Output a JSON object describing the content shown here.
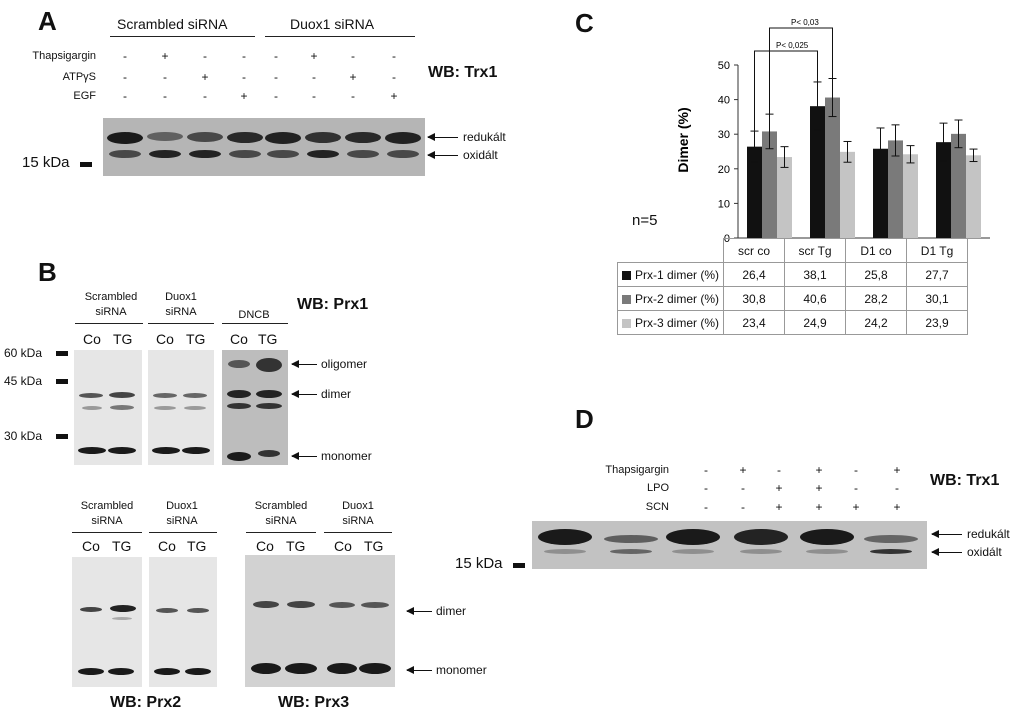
{
  "panelA": {
    "letter": "A",
    "group1": "Scrambled siRNA",
    "group2": "Duox1 siRNA",
    "rows": [
      {
        "label": "Thapsigargin",
        "signs": [
          "-",
          "+",
          "-",
          "-",
          "-",
          "+",
          "-",
          "-"
        ]
      },
      {
        "label": "ATPγS",
        "signs": [
          "-",
          "-",
          "+",
          "-",
          "-",
          "-",
          "+",
          "-"
        ]
      },
      {
        "label": "EGF",
        "signs": [
          "-",
          "-",
          "-",
          "+",
          "-",
          "-",
          "-",
          "+"
        ]
      }
    ],
    "wb": "WB: Trx1",
    "arrow1": "redukált",
    "arrow2": "oxidált",
    "kda": "15 kDa"
  },
  "panelB": {
    "letter": "B",
    "top_groups": [
      "Scrambled siRNA",
      "Duox1 siRNA",
      "DNCB"
    ],
    "lanes": [
      "Co",
      "TG",
      "Co",
      "TG",
      "Co",
      "TG"
    ],
    "wb_top": "WB: Prx1",
    "markers": [
      "60 kDa",
      "45 kDa",
      "30 kDa"
    ],
    "arrows_top": [
      "oligomer",
      "dimer",
      "monomer"
    ],
    "bottom_left_groups": [
      "Scrambled siRNA",
      "Duox1 siRNA"
    ],
    "bottom_right_groups": [
      "Scrambled siRNA",
      "Duox1 siRNA"
    ],
    "lanes_bottom": [
      "Co",
      "TG",
      "Co",
      "TG",
      "Co",
      "TG",
      "Co",
      "TG"
    ],
    "arrows_bottom": [
      "dimer",
      "monomer"
    ],
    "wb_prx2": "WB: Prx2",
    "wb_prx3": "WB: Prx3"
  },
  "panelC": {
    "letter": "C",
    "n_label": "n=5",
    "p1": "P< 0,03",
    "p2": "P< 0,025",
    "chart_data": {
      "type": "bar",
      "categories": [
        "scr co",
        "scr Tg",
        "D1 co",
        "D1 Tg"
      ],
      "ylabel": "Dimer (%)",
      "ylim": [
        0,
        50
      ],
      "yticks": [
        0,
        10,
        20,
        30,
        40,
        50
      ],
      "series": [
        {
          "name": "Prx-1 dimer (%)",
          "values": [
            26.4,
            38.1,
            25.8,
            27.7
          ],
          "errors": [
            4.5,
            7,
            6,
            5.5
          ],
          "color": "#111111"
        },
        {
          "name": "Prx-2 dimer (%)",
          "values": [
            30.8,
            40.6,
            28.2,
            30.1
          ],
          "errors": [
            5,
            5.5,
            4.5,
            4
          ],
          "color": "#7a7a7a"
        },
        {
          "name": "Prx-3 dimer (%)",
          "values": [
            23.4,
            24.9,
            24.2,
            23.9
          ],
          "errors": [
            3,
            3,
            2.5,
            1.8
          ],
          "color": "#c4c4c4"
        }
      ],
      "table_values": [
        [
          "26,4",
          "38,1",
          "25,8",
          "27,7"
        ],
        [
          "30,8",
          "40,6",
          "28,2",
          "30,1"
        ],
        [
          "23,4",
          "24,9",
          "24,2",
          "23,9"
        ]
      ]
    }
  },
  "panelD": {
    "letter": "D",
    "rows": [
      {
        "label": "Thapsigargin",
        "signs": [
          "-",
          "+",
          "-",
          "+",
          "-",
          "+"
        ]
      },
      {
        "label": "LPO",
        "signs": [
          "-",
          "-",
          "+",
          "+",
          "-",
          "-"
        ]
      },
      {
        "label": "SCN",
        "signs": [
          "-",
          "-",
          "+",
          "+",
          "+",
          "+"
        ]
      }
    ],
    "wb": "WB: Trx1",
    "arrow1": "redukált",
    "arrow2": "oxidált",
    "kda": "15 kDa"
  }
}
